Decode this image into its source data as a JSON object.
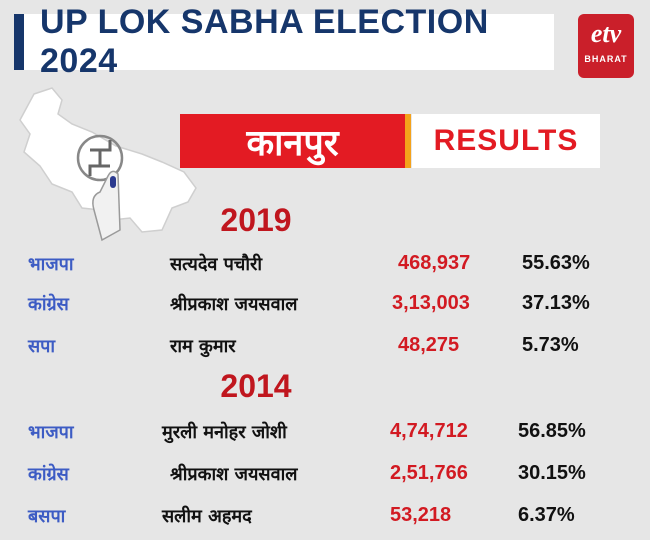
{
  "title": "UP LOK SABHA ELECTION 2024",
  "logo": {
    "mark": "etv",
    "sub": "BHARAT",
    "color": "#ca1f2a"
  },
  "city": "कानपुर",
  "results_label": "RESULTS",
  "colors": {
    "title": "#16366b",
    "accent_red": "#e31b23",
    "party": "#3d5cc4",
    "votes": "#d21a22"
  },
  "elections": [
    {
      "year": "2019",
      "rows": [
        {
          "party": "भाजपा",
          "candidate": "सत्यदेव पचौरी",
          "votes": "468,937",
          "pct": "55.63%"
        },
        {
          "party": "कांग्रेस",
          "candidate": "श्रीप्रकाश जयसवाल",
          "votes": "3,13,003",
          "pct": "37.13%"
        },
        {
          "party": "सपा",
          "candidate": "राम कुमार",
          "votes": "48,275",
          "pct": "5.73%"
        }
      ]
    },
    {
      "year": "2014",
      "rows": [
        {
          "party": "भाजपा",
          "candidate": "मुरली मनोहर जोशी",
          "votes": "4,74,712",
          "pct": "56.85%"
        },
        {
          "party": "कांग्रेस",
          "candidate": "श्रीप्रकाश जयसवाल",
          "votes": "2,51,766",
          "pct": "30.15%"
        },
        {
          "party": "बसपा",
          "candidate": "सलीम अहमद",
          "votes": "53,218",
          "pct": "6.37%"
        }
      ]
    }
  ]
}
